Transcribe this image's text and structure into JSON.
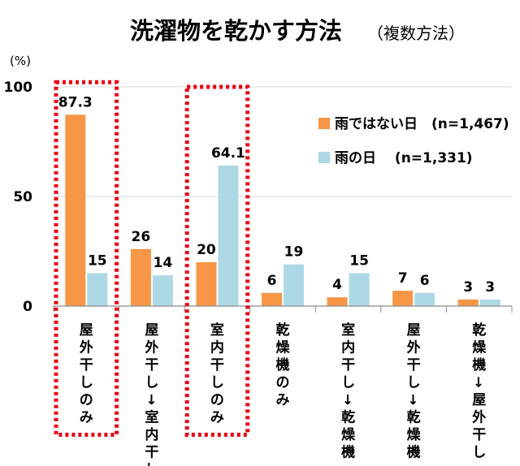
{
  "chart_data": {
    "type": "bar",
    "title": "洗濯物を乾かす方法",
    "subtitle": "（複数方法）",
    "ylabel": "(%)",
    "ylim": [
      0,
      100
    ],
    "yticks": [
      0,
      50,
      100
    ],
    "grid": true,
    "legend_position": "right",
    "categories": [
      "屋外干しのみ",
      "屋外干し→室内干し",
      "室内干しのみ",
      "乾燥機のみ",
      "室内干し→乾燥機",
      "屋外干し→乾燥機",
      "乾燥機→屋外干し"
    ],
    "series": [
      {
        "name": "雨ではない日　(n=1,467)",
        "color": "#F79646",
        "values": [
          87.3,
          26,
          20,
          6,
          4,
          7,
          3
        ],
        "labels": [
          "87.3",
          "26",
          "20",
          "6",
          "4",
          "7",
          "3"
        ]
      },
      {
        "name": "雨の日　 (n=1,331)",
        "color": "#ADD8E6",
        "values": [
          15,
          14,
          64.1,
          19,
          15,
          6,
          3
        ],
        "labels": [
          "15",
          "14",
          "64.1",
          "19",
          "15",
          "6",
          "3"
        ]
      }
    ],
    "highlighted_categories": [
      "屋外干しのみ",
      "室内干しのみ"
    ],
    "highlight_color": "#E60012"
  }
}
